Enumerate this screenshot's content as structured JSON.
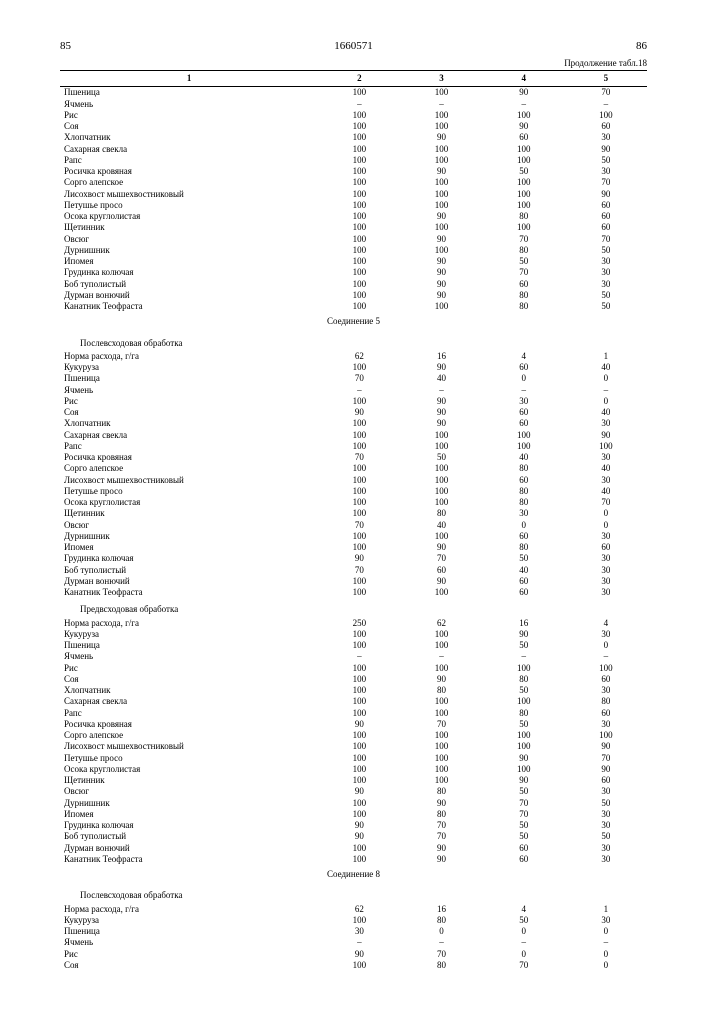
{
  "header": {
    "left_page": "85",
    "doc_number": "1660571",
    "right_page": "86",
    "continuation": "Продолжение табл.18"
  },
  "col_headers": [
    "1",
    "2",
    "3",
    "4",
    "5"
  ],
  "labels": {
    "compound5": "Соединение 5",
    "compound8": "Соединение 8",
    "post_emergence": "Послевсходовая обработка",
    "pre_emergence": "Предвсходовая обработка"
  },
  "block1_rows": [
    {
      "name": "Пшеница",
      "v": [
        "100",
        "100",
        "90",
        "70"
      ]
    },
    {
      "name": "Ячмень",
      "v": [
        "–",
        "–",
        "–",
        "–"
      ]
    },
    {
      "name": "Рис",
      "v": [
        "100",
        "100",
        "100",
        "100"
      ]
    },
    {
      "name": "Соя",
      "v": [
        "100",
        "100",
        "90",
        "60"
      ]
    },
    {
      "name": "Хлопчатник",
      "v": [
        "100",
        "90",
        "60",
        "30"
      ]
    },
    {
      "name": "Сахарная свекла",
      "v": [
        "100",
        "100",
        "100",
        "90"
      ]
    },
    {
      "name": "Рапс",
      "v": [
        "100",
        "100",
        "100",
        "50"
      ]
    },
    {
      "name": "Росичка кровяная",
      "v": [
        "100",
        "90",
        "50",
        "30"
      ]
    },
    {
      "name": "Сорго алепское",
      "v": [
        "100",
        "100",
        "100",
        "70"
      ]
    },
    {
      "name": "Лисохвост мышехвостниковый",
      "v": [
        "100",
        "100",
        "100",
        "90"
      ]
    },
    {
      "name": "Петушье просо",
      "v": [
        "100",
        "100",
        "100",
        "60"
      ]
    },
    {
      "name": "Осока круглолистая",
      "v": [
        "100",
        "90",
        "80",
        "60"
      ]
    },
    {
      "name": "Щетинник",
      "v": [
        "100",
        "100",
        "100",
        "60"
      ]
    },
    {
      "name": "Овсюг",
      "v": [
        "100",
        "90",
        "70",
        "70"
      ]
    },
    {
      "name": "Дурнишник",
      "v": [
        "100",
        "100",
        "80",
        "50"
      ]
    },
    {
      "name": "Ипомея",
      "v": [
        "100",
        "90",
        "50",
        "30"
      ]
    },
    {
      "name": "Грудинка колючая",
      "v": [
        "100",
        "90",
        "70",
        "30"
      ]
    },
    {
      "name": "Боб туполистый",
      "v": [
        "100",
        "90",
        "60",
        "30"
      ]
    },
    {
      "name": "Дурман вонючий",
      "v": [
        "100",
        "90",
        "80",
        "50"
      ]
    },
    {
      "name": "Канатник Теофраста",
      "v": [
        "100",
        "100",
        "80",
        "50"
      ]
    }
  ],
  "block2_rows": [
    {
      "name": "Норма расхода, г/га",
      "v": [
        "62",
        "16",
        "4",
        "1"
      ]
    },
    {
      "name": "Кукуруза",
      "v": [
        "100",
        "90",
        "60",
        "40"
      ]
    },
    {
      "name": "Пшеница",
      "v": [
        "70",
        "40",
        "0",
        "0"
      ]
    },
    {
      "name": "Ячмень",
      "v": [
        "–",
        "–",
        "–",
        "–"
      ]
    },
    {
      "name": "Рис",
      "v": [
        "100",
        "90",
        "30",
        "0"
      ]
    },
    {
      "name": "Соя",
      "v": [
        "90",
        "90",
        "60",
        "40"
      ]
    },
    {
      "name": "Хлопчатник",
      "v": [
        "100",
        "90",
        "60",
        "30"
      ]
    },
    {
      "name": "Сахарная свекла",
      "v": [
        "100",
        "100",
        "100",
        "90"
      ]
    },
    {
      "name": "Рапс",
      "v": [
        "100",
        "100",
        "100",
        "100"
      ]
    },
    {
      "name": "Росичка кровяная",
      "v": [
        "70",
        "50",
        "40",
        "30"
      ]
    },
    {
      "name": "Сорго алепское",
      "v": [
        "100",
        "100",
        "80",
        "40"
      ]
    },
    {
      "name": "Лисохвост мышехвостниковый",
      "v": [
        "100",
        "100",
        "60",
        "30"
      ]
    },
    {
      "name": "Петушье просо",
      "v": [
        "100",
        "100",
        "80",
        "40"
      ]
    },
    {
      "name": "Осока круглолистая",
      "v": [
        "100",
        "100",
        "80",
        "70"
      ]
    },
    {
      "name": "Щетинник",
      "v": [
        "100",
        "80",
        "30",
        "0"
      ]
    },
    {
      "name": "Овсюг",
      "v": [
        "70",
        "40",
        "0",
        "0"
      ]
    },
    {
      "name": "Дурнишник",
      "v": [
        "100",
        "100",
        "60",
        "30"
      ]
    },
    {
      "name": "Ипомея",
      "v": [
        "100",
        "90",
        "80",
        "60"
      ]
    },
    {
      "name": "Грудинка колючая",
      "v": [
        "90",
        "70",
        "50",
        "30"
      ]
    },
    {
      "name": "Боб туполистый",
      "v": [
        "70",
        "60",
        "40",
        "30"
      ]
    },
    {
      "name": "Дурман вонючий",
      "v": [
        "100",
        "90",
        "60",
        "30"
      ]
    },
    {
      "name": "Канатник Теофраста",
      "v": [
        "100",
        "100",
        "60",
        "30"
      ]
    }
  ],
  "block3_rows": [
    {
      "name": "Норма расхода, г/га",
      "v": [
        "250",
        "62",
        "16",
        "4"
      ]
    },
    {
      "name": "Кукуруза",
      "v": [
        "100",
        "100",
        "90",
        "30"
      ]
    },
    {
      "name": "Пшеница",
      "v": [
        "100",
        "100",
        "50",
        "0"
      ]
    },
    {
      "name": "Ячмень",
      "v": [
        "–",
        "–",
        "–",
        "–"
      ]
    },
    {
      "name": "Рис",
      "v": [
        "100",
        "100",
        "100",
        "100"
      ]
    },
    {
      "name": "Соя",
      "v": [
        "100",
        "90",
        "80",
        "60"
      ]
    },
    {
      "name": "Хлопчатник",
      "v": [
        "100",
        "80",
        "50",
        "30"
      ]
    },
    {
      "name": "Сахарная свекла",
      "v": [
        "100",
        "100",
        "100",
        "80"
      ]
    },
    {
      "name": "Рапс",
      "v": [
        "100",
        "100",
        "80",
        "60"
      ]
    },
    {
      "name": "Росичка кровяная",
      "v": [
        "90",
        "70",
        "50",
        "30"
      ]
    },
    {
      "name": "Сорго алепское",
      "v": [
        "100",
        "100",
        "100",
        "100"
      ]
    },
    {
      "name": "Лисохвост мышехвостниковый",
      "v": [
        "100",
        "100",
        "100",
        "90"
      ]
    },
    {
      "name": "Петушье просо",
      "v": [
        "100",
        "100",
        "90",
        "70"
      ]
    },
    {
      "name": "Осока круглолистая",
      "v": [
        "100",
        "100",
        "100",
        "90"
      ]
    },
    {
      "name": "Щетинник",
      "v": [
        "100",
        "100",
        "90",
        "60"
      ]
    },
    {
      "name": "Овсюг",
      "v": [
        "90",
        "80",
        "50",
        "30"
      ]
    },
    {
      "name": "Дурнишник",
      "v": [
        "100",
        "90",
        "70",
        "50"
      ]
    },
    {
      "name": "Ипомея",
      "v": [
        "100",
        "80",
        "70",
        "30"
      ]
    },
    {
      "name": "Грудинка колючая",
      "v": [
        "90",
        "70",
        "50",
        "30"
      ]
    },
    {
      "name": "Боб туполистый",
      "v": [
        "90",
        "70",
        "50",
        "50"
      ]
    },
    {
      "name": "Дурман вонючий",
      "v": [
        "100",
        "90",
        "60",
        "30"
      ]
    },
    {
      "name": "Канатник Теофраста",
      "v": [
        "100",
        "90",
        "60",
        "30"
      ]
    }
  ],
  "block4_rows": [
    {
      "name": "Норма расхода, г/га",
      "v": [
        "62",
        "16",
        "4",
        "1"
      ]
    },
    {
      "name": "Кукуруза",
      "v": [
        "100",
        "80",
        "50",
        "30"
      ]
    },
    {
      "name": "Пшеница",
      "v": [
        "30",
        "0",
        "0",
        "0"
      ]
    },
    {
      "name": "Ячмень",
      "v": [
        "–",
        "–",
        "–",
        "–"
      ]
    },
    {
      "name": "Рис",
      "v": [
        "90",
        "70",
        "0",
        "0"
      ]
    },
    {
      "name": "Соя",
      "v": [
        "100",
        "80",
        "70",
        "0"
      ]
    }
  ]
}
